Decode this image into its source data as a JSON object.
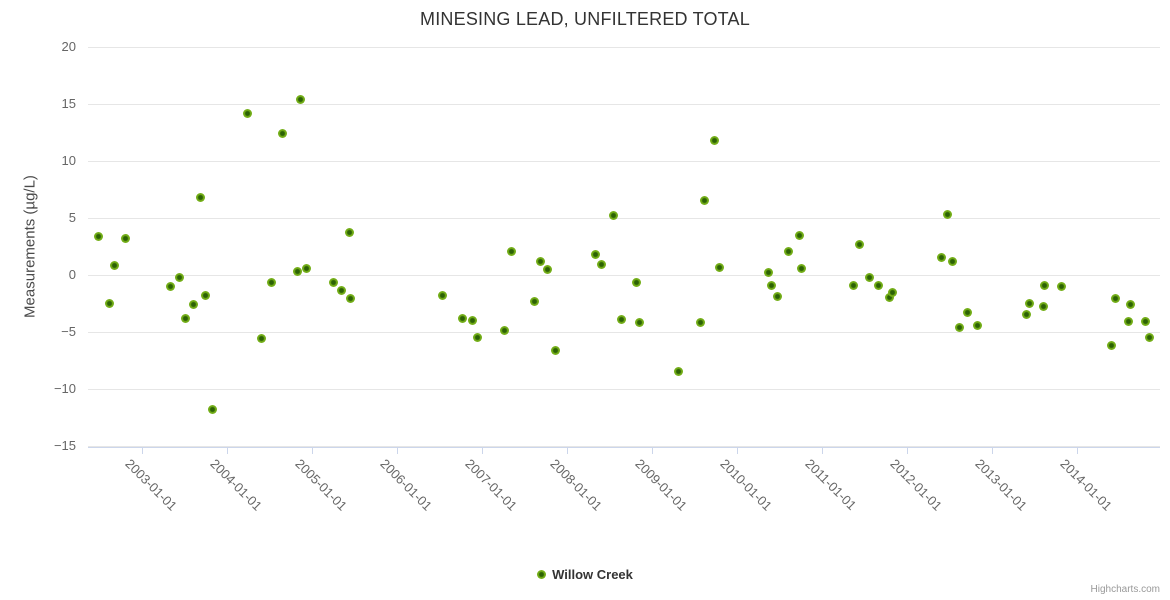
{
  "title": "MINESING LEAD, UNFILTERED TOTAL",
  "legend": {
    "series_label": "Willow Creek"
  },
  "credits": "Highcharts.com",
  "colors": {
    "point_outer": "#7cb71f",
    "point_inner": "#2c6205",
    "grid": "#e6e6e6",
    "axis_line": "#ccd6eb",
    "axis_label": "#666666",
    "title": "#333333"
  },
  "axes": {
    "y_ticks": [
      {
        "v": 20,
        "label": "20"
      },
      {
        "v": 15,
        "label": "15"
      },
      {
        "v": 10,
        "label": "10"
      },
      {
        "v": 5,
        "label": "5"
      },
      {
        "v": 0,
        "label": "0"
      },
      {
        "v": -5,
        "label": "−5"
      },
      {
        "v": -10,
        "label": "−10"
      },
      {
        "v": -15,
        "label": "−15"
      }
    ],
    "x_ticks": [
      {
        "year": 2003,
        "label": "2003-01-01"
      },
      {
        "year": 2004,
        "label": "2004-01-01"
      },
      {
        "year": 2005,
        "label": "2005-01-01"
      },
      {
        "year": 2006,
        "label": "2006-01-01"
      },
      {
        "year": 2007,
        "label": "2007-01-01"
      },
      {
        "year": 2008,
        "label": "2008-01-01"
      },
      {
        "year": 2009,
        "label": "2009-01-01"
      },
      {
        "year": 2010,
        "label": "2010-01-01"
      },
      {
        "year": 2011,
        "label": "2011-01-01"
      },
      {
        "year": 2012,
        "label": "2012-01-01"
      },
      {
        "year": 2013,
        "label": "2013-01-01"
      },
      {
        "year": 2014,
        "label": "2014-01-01"
      }
    ]
  },
  "chart_data": {
    "type": "scatter",
    "title": "MINESING LEAD, UNFILTERED TOTAL",
    "xlabel": "",
    "ylabel": "Measurements (µg/L)",
    "ylim": [
      -15,
      20
    ],
    "xlim_decimal_years": [
      2002.33,
      2014.97
    ],
    "grid": true,
    "legend_position": "bottom-center",
    "series": [
      {
        "name": "Willow Creek",
        "color": "#7cb71f",
        "points": [
          [
            2002.49,
            3.4
          ],
          [
            2002.62,
            -2.5
          ],
          [
            2002.68,
            0.8
          ],
          [
            2002.81,
            3.2
          ],
          [
            2003.34,
            -1.0
          ],
          [
            2003.44,
            -0.2
          ],
          [
            2003.51,
            -3.8
          ],
          [
            2003.6,
            -2.6
          ],
          [
            2003.69,
            6.8
          ],
          [
            2003.75,
            -1.8
          ],
          [
            2003.83,
            -11.8
          ],
          [
            2004.24,
            14.2
          ],
          [
            2004.4,
            -5.6
          ],
          [
            2004.52,
            -0.7
          ],
          [
            2004.65,
            12.4
          ],
          [
            2004.83,
            0.3
          ],
          [
            2004.87,
            15.4
          ],
          [
            2004.94,
            0.6
          ],
          [
            2005.25,
            -0.7
          ],
          [
            2005.35,
            -1.4
          ],
          [
            2005.44,
            3.7
          ],
          [
            2005.45,
            -2.1
          ],
          [
            2006.53,
            -1.8
          ],
          [
            2006.77,
            -3.8
          ],
          [
            2006.89,
            -4.0
          ],
          [
            2006.95,
            -5.5
          ],
          [
            2007.26,
            -4.9
          ],
          [
            2007.35,
            2.1
          ],
          [
            2007.62,
            -2.3
          ],
          [
            2007.69,
            1.2
          ],
          [
            2007.77,
            0.5
          ],
          [
            2007.87,
            -6.6
          ],
          [
            2008.33,
            1.8
          ],
          [
            2008.41,
            0.9
          ],
          [
            2008.55,
            5.2
          ],
          [
            2008.64,
            -3.9
          ],
          [
            2008.82,
            -0.7
          ],
          [
            2008.85,
            -4.2
          ],
          [
            2009.31,
            -8.5
          ],
          [
            2009.57,
            -4.2
          ],
          [
            2009.62,
            6.5
          ],
          [
            2009.74,
            11.8
          ],
          [
            2009.79,
            0.7
          ],
          [
            2010.37,
            0.2
          ],
          [
            2010.4,
            -0.9
          ],
          [
            2010.48,
            -1.9
          ],
          [
            2010.6,
            2.1
          ],
          [
            2010.73,
            3.5
          ],
          [
            2010.76,
            0.6
          ],
          [
            2011.37,
            -0.9
          ],
          [
            2011.44,
            2.7
          ],
          [
            2011.56,
            -0.2
          ],
          [
            2011.67,
            -0.9
          ],
          [
            2011.79,
            -2.0
          ],
          [
            2011.83,
            -1.5
          ],
          [
            2012.41,
            1.5
          ],
          [
            2012.48,
            5.3
          ],
          [
            2012.53,
            1.2
          ],
          [
            2012.62,
            -4.6
          ],
          [
            2012.71,
            -3.3
          ],
          [
            2012.83,
            -4.4
          ],
          [
            2013.4,
            -3.5
          ],
          [
            2013.44,
            -2.5
          ],
          [
            2013.6,
            -2.8
          ],
          [
            2013.62,
            -0.9
          ],
          [
            2013.82,
            -1.0
          ],
          [
            2014.4,
            -6.2
          ],
          [
            2014.45,
            -2.1
          ],
          [
            2014.61,
            -4.1
          ],
          [
            2014.63,
            -2.6
          ],
          [
            2014.81,
            -4.1
          ],
          [
            2014.85,
            -5.5
          ]
        ]
      }
    ]
  }
}
